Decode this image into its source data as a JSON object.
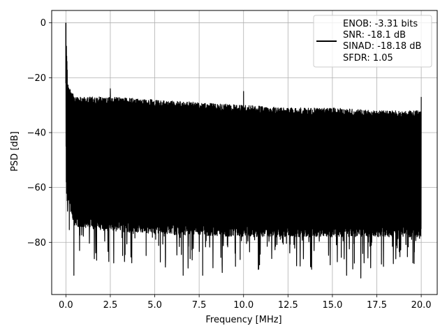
{
  "chart_data": {
    "type": "line",
    "title": "",
    "xlabel": "Frequency [MHz]",
    "ylabel": "PSD [dB]",
    "xlim": [
      -0.8,
      20.9
    ],
    "ylim": [
      -99.0,
      4.5
    ],
    "x_ticks": [
      0.0,
      2.5,
      5.0,
      7.5,
      10.0,
      12.5,
      15.0,
      17.5,
      20.0
    ],
    "x_tick_labels": [
      "0.0",
      "2.5",
      "5.0",
      "7.5",
      "10.0",
      "12.5",
      "15.0",
      "17.5",
      "20.0"
    ],
    "y_ticks": [
      0,
      -20,
      -40,
      -60,
      -80
    ],
    "y_tick_labels": [
      "0",
      "−20",
      "−40",
      "−60",
      "−80"
    ],
    "grid": true,
    "legend_position": "top-right",
    "series": [
      {
        "color": "#000000",
        "x_range": [
          0.0,
          20.0
        ],
        "peak": {
          "x": 0.0,
          "y": 0.0
        },
        "upper_envelope": {
          "x": [
            0.0,
            0.1,
            0.5,
            2.5,
            5.0,
            7.5,
            10.0,
            12.5,
            15.0,
            17.5,
            20.0
          ],
          "y": [
            0,
            -22,
            -27,
            -27,
            -28,
            -29,
            -30,
            -31,
            -31,
            -32,
            -32
          ]
        },
        "lower_envelope": {
          "x": [
            0.0,
            0.5,
            2.5,
            5.0,
            10.0,
            15.0,
            20.0
          ],
          "y": [
            -60,
            -70,
            -72,
            -73,
            -74,
            -74,
            -74
          ]
        },
        "spurs": [
          {
            "x": 2.5,
            "y": -24
          },
          {
            "x": 10.0,
            "y": -25
          },
          {
            "x": 20.0,
            "y": -27
          }
        ],
        "min_dips": [
          {
            "x": 0.45,
            "y": -92
          },
          {
            "x": 3.3,
            "y": -87
          },
          {
            "x": 5.6,
            "y": -89
          },
          {
            "x": 6.6,
            "y": -92
          },
          {
            "x": 7.7,
            "y": -92
          },
          {
            "x": 8.8,
            "y": -91
          },
          {
            "x": 10.9,
            "y": -90
          },
          {
            "x": 15.8,
            "y": -92
          },
          {
            "x": 16.6,
            "y": -93
          },
          {
            "x": 19.6,
            "y": -95
          }
        ]
      }
    ],
    "legend": {
      "lines": [
        "ENOB: -3.31 bits",
        "SNR: -18.1 dB",
        "SINAD: -18.18 dB",
        "SFDR: 1.05"
      ]
    }
  }
}
